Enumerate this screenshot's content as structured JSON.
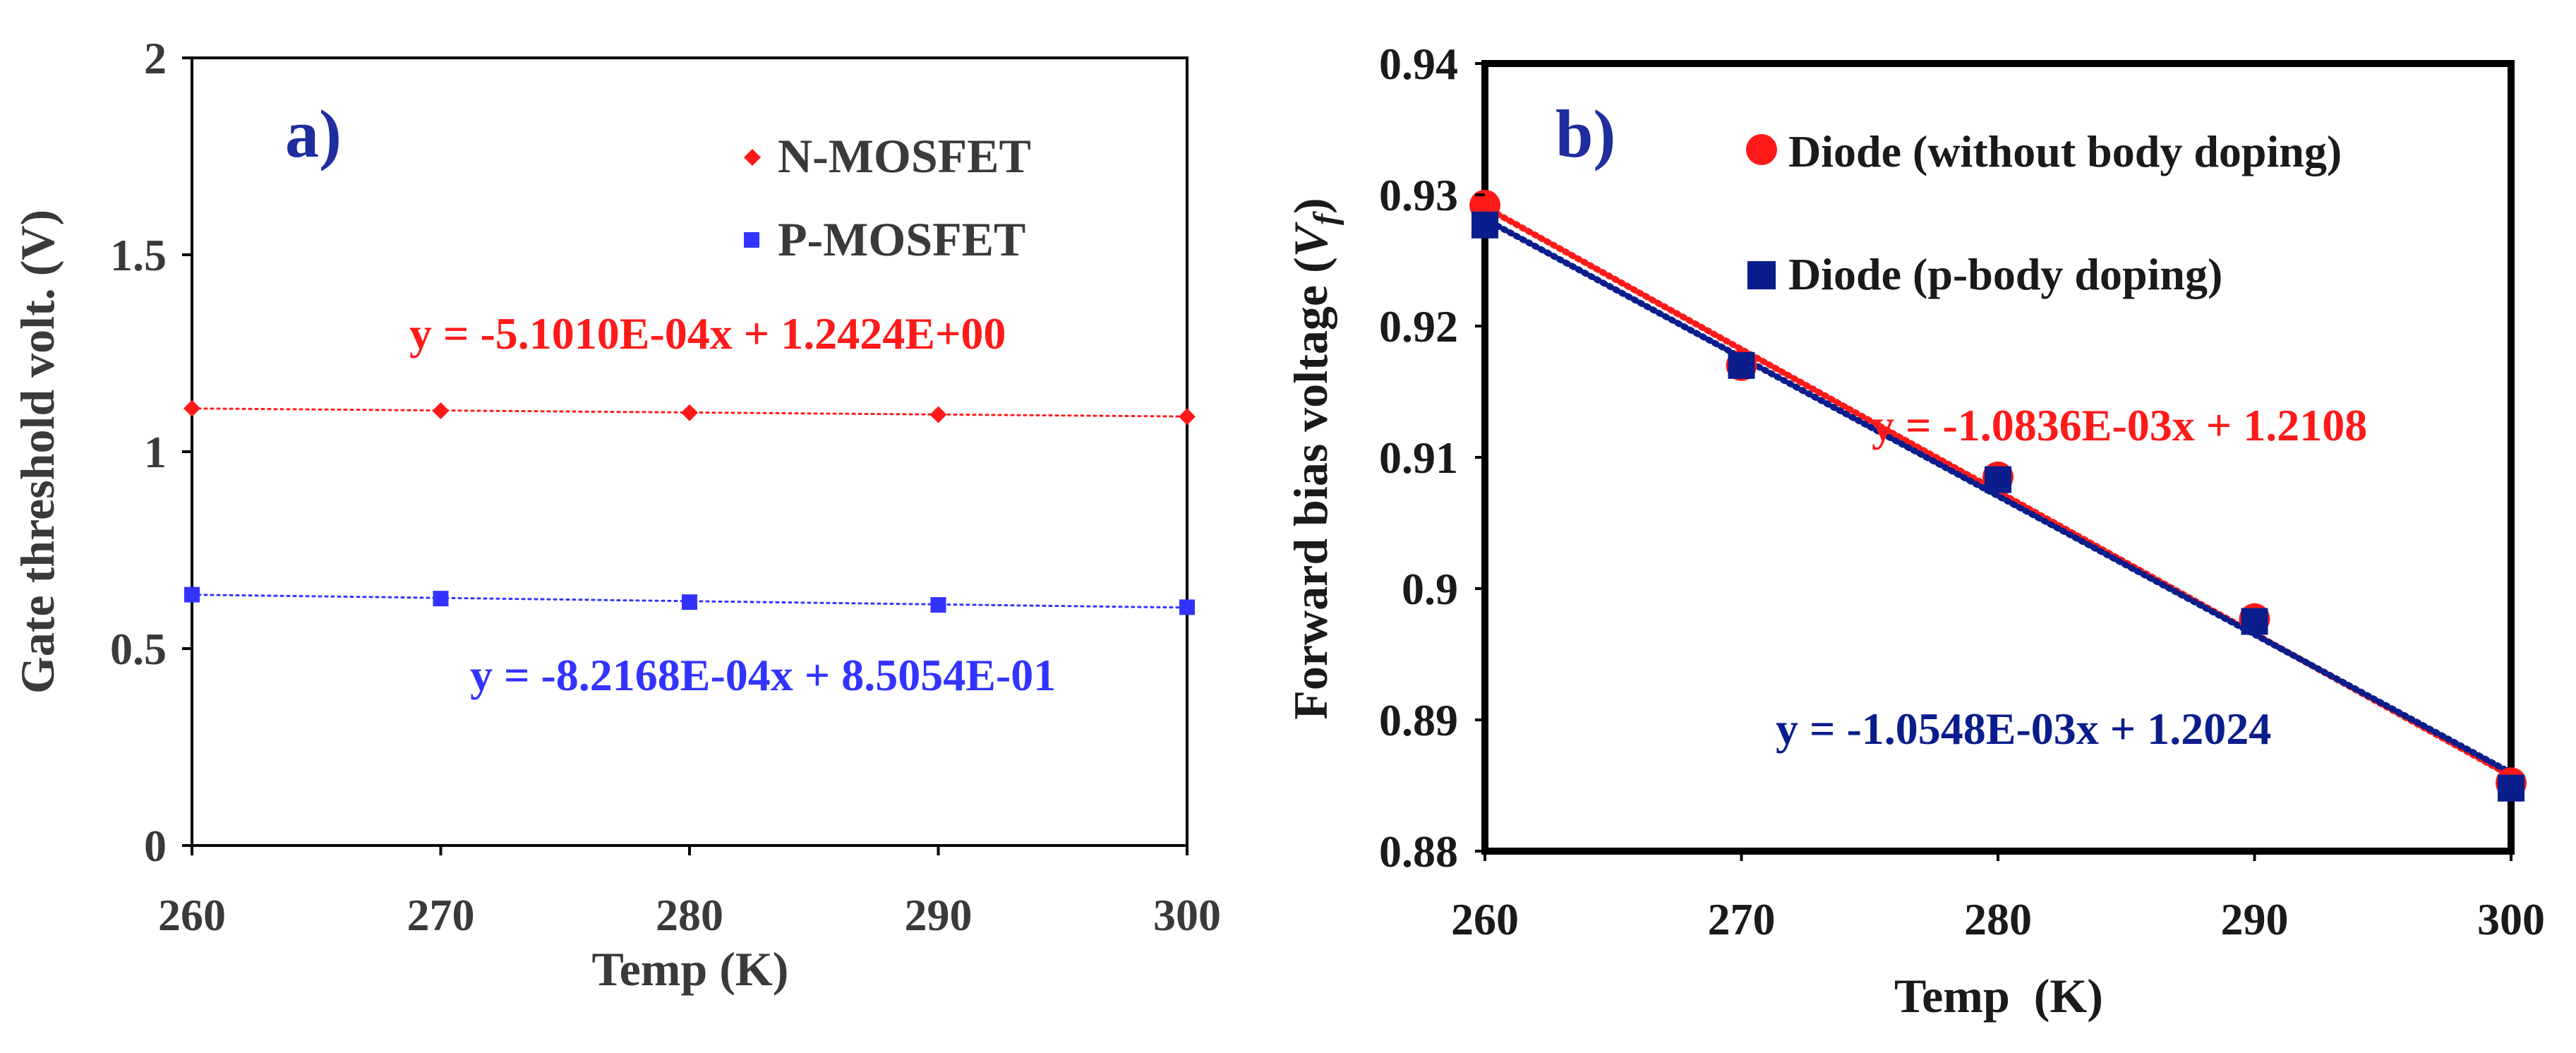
{
  "colors": {
    "red": "#ff1a1a",
    "blue": "#3333ff",
    "navy": "#0a1d8c",
    "panel_label": "#1f2d9e",
    "axis": "#000000",
    "text": "#3a3a3a"
  },
  "chart_data": [
    {
      "panel": "a)",
      "type": "scatter",
      "title": "",
      "xlabel": "Temp (K)",
      "ylabel": "Gate threshold volt. (V)",
      "xlim": [
        260,
        300
      ],
      "ylim": [
        0,
        2
      ],
      "x_ticks": [
        260,
        270,
        280,
        290,
        300
      ],
      "x_tick_labels": [
        "260",
        "270",
        "280",
        "290",
        "300"
      ],
      "y_ticks": [
        0,
        0.5,
        1,
        1.5,
        2
      ],
      "y_tick_labels": [
        "0",
        "0.5",
        "1",
        "1.5",
        "2"
      ],
      "legend_position": "top-right",
      "series": [
        {
          "name": "N-MOSFET",
          "marker": "diamond",
          "color": "#ff1a1a",
          "x": [
            260,
            270,
            280,
            290,
            300
          ],
          "y": [
            1.11,
            1.104,
            1.099,
            1.094,
            1.089
          ],
          "fit": {
            "slope": -0.0005101,
            "intercept": 1.2424,
            "label": "y = -5.1010E-04x + 1.2424E+00"
          }
        },
        {
          "name": "P-MOSFET",
          "marker": "square",
          "color": "#3333ff",
          "x": [
            260,
            270,
            280,
            290,
            300
          ],
          "y": [
            0.637,
            0.627,
            0.618,
            0.611,
            0.605
          ],
          "fit": {
            "slope": -0.00082168,
            "intercept": 0.85054,
            "label": "y = -8.2168E-04x + 8.5054E-01"
          }
        }
      ]
    },
    {
      "panel": "b)",
      "type": "scatter",
      "title": "",
      "xlabel": "Temp  (K)",
      "ylabel_main": "Forward bias voltage (",
      "ylabel_var": "V",
      "ylabel_sub": "f",
      "ylabel_end": ")",
      "xlim": [
        260,
        300
      ],
      "ylim": [
        0.88,
        0.94
      ],
      "x_ticks": [
        260,
        270,
        280,
        290,
        300
      ],
      "x_tick_labels": [
        "260",
        "270",
        "280",
        "290",
        "300"
      ],
      "y_ticks": [
        0.88,
        0.89,
        0.9,
        0.91,
        0.92,
        0.93,
        0.94
      ],
      "y_tick_labels": [
        "0.88",
        "0.89",
        "0.9",
        "0.91",
        "0.92",
        "0.93",
        "0.94"
      ],
      "legend_position": "top-right",
      "series": [
        {
          "name": "Diode (without body doping)",
          "marker": "circle",
          "color": "#ff1a1a",
          "x": [
            260,
            270,
            280,
            290,
            300
          ],
          "y": [
            0.9292,
            0.917,
            0.9085,
            0.8977,
            0.8852
          ],
          "fit": {
            "slope": -0.0010836,
            "intercept": 1.2108,
            "label": "y = -1.0836E-03x + 1.2108"
          }
        },
        {
          "name": "Diode (p-body doping)",
          "marker": "square",
          "color": "#0a1d8c",
          "x": [
            260,
            270,
            280,
            290,
            300
          ],
          "y": [
            0.9277,
            0.917,
            0.9083,
            0.8975,
            0.8848
          ],
          "fit": {
            "slope": -0.0010548,
            "intercept": 1.2024,
            "label": "y = -1.0548E-03x + 1.2024"
          }
        }
      ]
    }
  ]
}
